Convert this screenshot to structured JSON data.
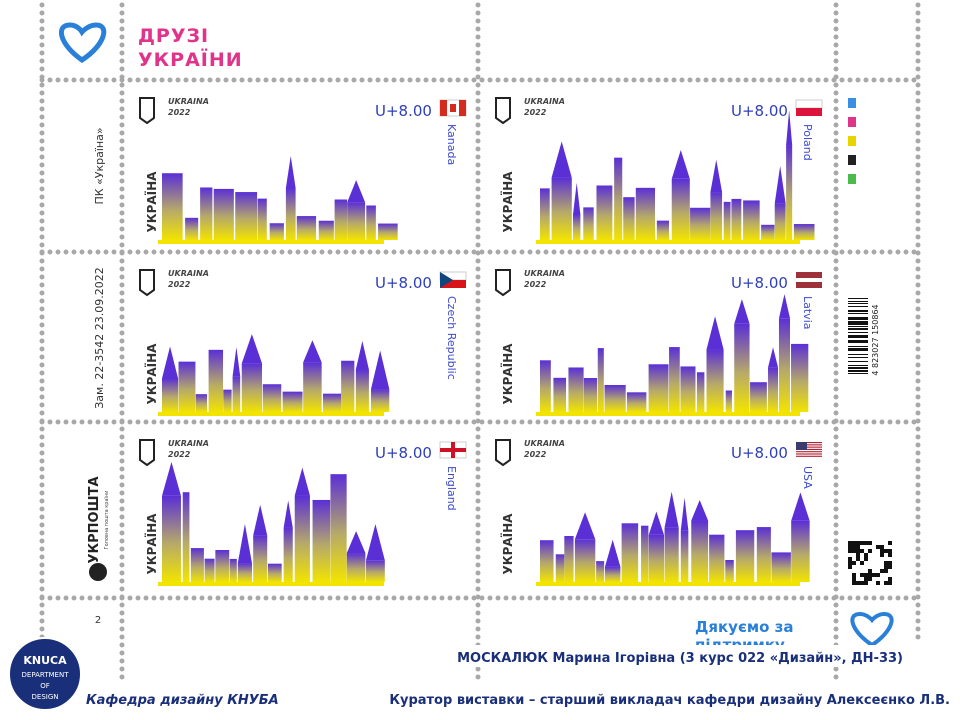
{
  "header": {
    "title_line1": "ДРУЗІ",
    "title_line2": "УКРАЇНИ"
  },
  "stamps": [
    {
      "ukraina": "UKRAINA",
      "year": "2022",
      "country_ua": "УКРАЇНА",
      "price": "U+8.00",
      "country": "Kanada"
    },
    {
      "ukraina": "UKRAINA",
      "year": "2022",
      "country_ua": "УКРАЇНА",
      "price": "U+8.00",
      "country": "Poland"
    },
    {
      "ukraina": "UKRAINA",
      "year": "2022",
      "country_ua": "УКРАЇНА",
      "price": "U+8.00",
      "country": "Czech Republic"
    },
    {
      "ukraina": "UKRAINA",
      "year": "2022",
      "country_ua": "УКРАЇНА",
      "price": "U+8.00",
      "country": "Latvia"
    },
    {
      "ukraina": "UKRAINA",
      "year": "2022",
      "country_ua": "УКРАЇНА",
      "price": "U+8.00",
      "country": "England"
    },
    {
      "ukraina": "UKRAINA",
      "year": "2022",
      "country_ua": "УКРАЇНА",
      "price": "U+8.00",
      "country": "USA"
    }
  ],
  "margin": {
    "pk": "ПК «Україна»",
    "order": "Зам. 22-3542   23.09.2022",
    "post": "УКРПОШТА",
    "post_sub": "Головна пошта країни",
    "sheet_no": "2",
    "barcode": "4 823027 150864",
    "thanks_line1": "Дякуємо за",
    "thanks_line2": "підтримку"
  },
  "footer": {
    "logo_line1": "KNUCA",
    "logo_line2": "DEPARTMENT",
    "logo_line3": "OF",
    "logo_line4": "DESIGN",
    "author": "МОСКАЛЮК Марина Ігорівна  (3 курс 022 «Дизайн», ДН-33)",
    "department": "Кафедра дизайну КНУБА",
    "curator": "Куратор виставки – старший викладач кафедри дизайну Алексеєнко Л.В."
  }
}
